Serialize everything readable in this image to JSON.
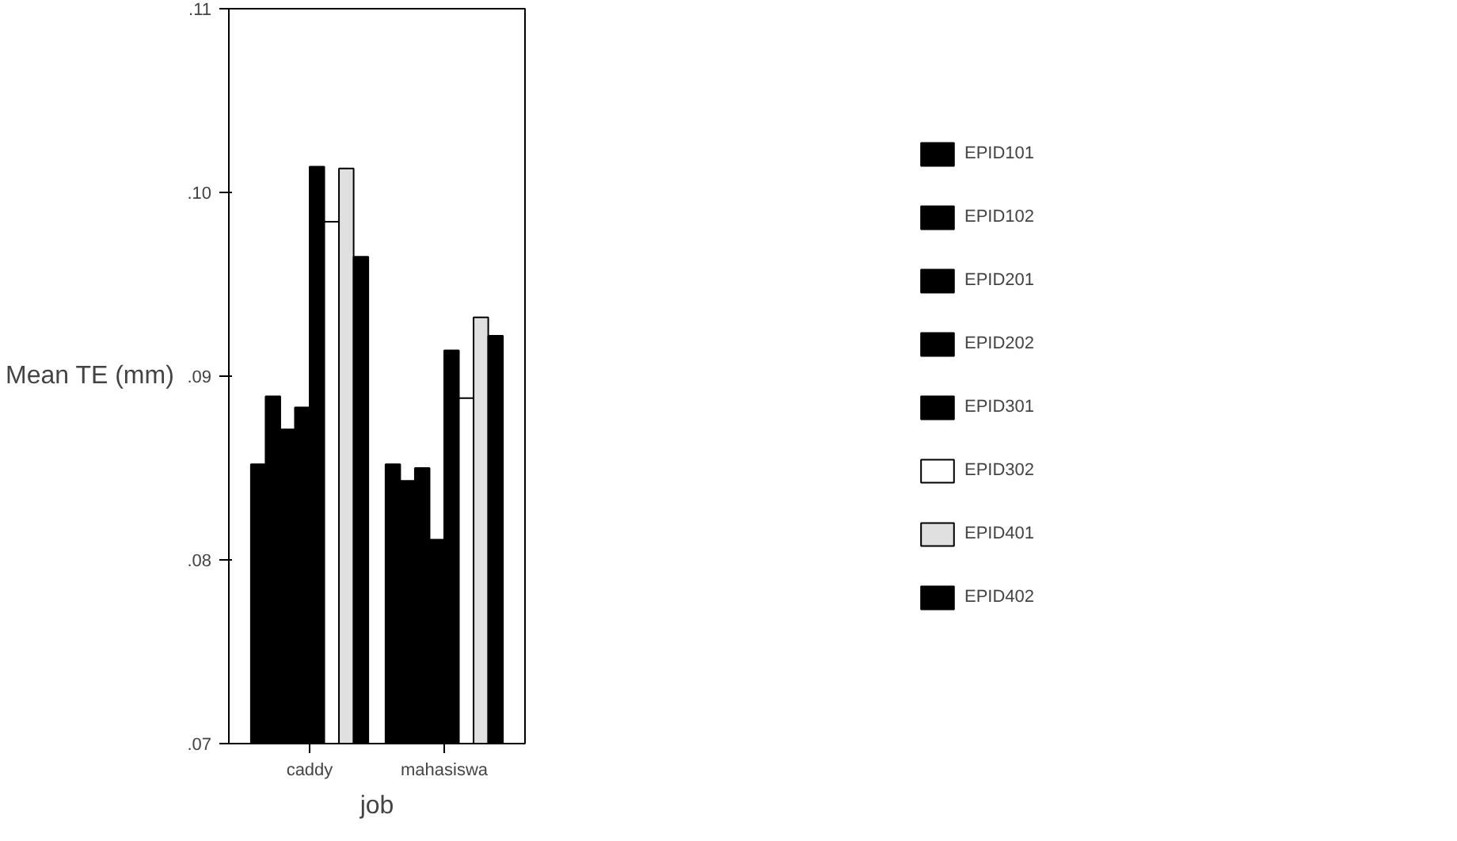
{
  "chart_data": {
    "type": "bar",
    "xlabel": "job",
    "ylabel": "Mean TE (mm)",
    "categories": [
      "caddy",
      "mahasiswa"
    ],
    "series": [
      {
        "name": "EPID101",
        "color": "#000000",
        "values": [
          0.0852,
          0.0852
        ]
      },
      {
        "name": "EPID102",
        "color": "#000000",
        "values": [
          0.0889,
          0.0843
        ]
      },
      {
        "name": "EPID201",
        "color": "#000000",
        "values": [
          0.0871,
          0.085
        ]
      },
      {
        "name": "EPID202",
        "color": "#000000",
        "values": [
          0.0883,
          0.0811
        ]
      },
      {
        "name": "EPID301",
        "color": "#000000",
        "values": [
          0.1014,
          0.0914
        ]
      },
      {
        "name": "EPID302",
        "color": "#ffffff",
        "values": [
          0.0984,
          0.0888
        ]
      },
      {
        "name": "EPID401",
        "color": "#e0e0e0",
        "values": [
          0.1013,
          0.0932
        ]
      },
      {
        "name": "EPID402",
        "color": "#000000",
        "values": [
          0.0965,
          0.0922
        ]
      }
    ],
    "ylim": [
      0.07,
      0.11
    ],
    "yticks": [
      {
        "value": 0.07,
        "label": ".07"
      },
      {
        "value": 0.08,
        "label": ".08"
      },
      {
        "value": 0.09,
        "label": ".09"
      },
      {
        "value": 0.1,
        "label": ".10"
      },
      {
        "value": 0.11,
        "label": ".11"
      }
    ],
    "grid": false,
    "legend": "right"
  }
}
